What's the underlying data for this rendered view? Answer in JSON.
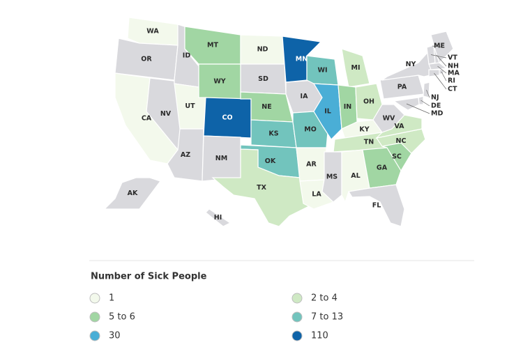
{
  "legend": {
    "title": "Number of Sick People",
    "items": [
      {
        "label": "1",
        "color": "#f3f9ec"
      },
      {
        "label": "2 to 4",
        "color": "#cfe9c4"
      },
      {
        "label": "5 to 6",
        "color": "#a1d6a3"
      },
      {
        "label": "7 to 13",
        "color": "#72c4bd"
      },
      {
        "label": "30",
        "color": "#4aaed6"
      },
      {
        "label": "110",
        "color": "#0e63a8"
      }
    ],
    "no_data_color": "#d9d9dd"
  },
  "states": [
    {
      "label": "WA",
      "group": 0
    },
    {
      "label": "OR",
      "group": null
    },
    {
      "label": "CA",
      "group": 0
    },
    {
      "label": "NV",
      "group": null
    },
    {
      "label": "ID",
      "group": null
    },
    {
      "label": "MT",
      "group": 2
    },
    {
      "label": "WY",
      "group": 2
    },
    {
      "label": "UT",
      "group": 0
    },
    {
      "label": "AZ",
      "group": null
    },
    {
      "label": "CO",
      "group": 5
    },
    {
      "label": "NM",
      "group": null
    },
    {
      "label": "ND",
      "group": 0
    },
    {
      "label": "SD",
      "group": null
    },
    {
      "label": "NE",
      "group": 2
    },
    {
      "label": "KS",
      "group": 3
    },
    {
      "label": "OK",
      "group": 3
    },
    {
      "label": "TX",
      "group": 1
    },
    {
      "label": "MN",
      "group": 5
    },
    {
      "label": "IA",
      "group": null
    },
    {
      "label": "MO",
      "group": 3
    },
    {
      "label": "AR",
      "group": 0
    },
    {
      "label": "LA",
      "group": 0
    },
    {
      "label": "WI",
      "group": 3
    },
    {
      "label": "IL",
      "group": 4
    },
    {
      "label": "MI",
      "group": 1
    },
    {
      "label": "IN",
      "group": 2
    },
    {
      "label": "OH",
      "group": 1
    },
    {
      "label": "KY",
      "group": 0
    },
    {
      "label": "TN",
      "group": 1
    },
    {
      "label": "MS",
      "group": null
    },
    {
      "label": "AL",
      "group": 0
    },
    {
      "label": "GA",
      "group": 2
    },
    {
      "label": "FL",
      "group": null
    },
    {
      "label": "SC",
      "group": 2
    },
    {
      "label": "NC",
      "group": 1
    },
    {
      "label": "VA",
      "group": 1
    },
    {
      "label": "WV",
      "group": null
    },
    {
      "label": "PA",
      "group": null
    },
    {
      "label": "NY",
      "group": null
    },
    {
      "label": "ME",
      "group": null
    },
    {
      "label": "VT",
      "group": null
    },
    {
      "label": "NH",
      "group": null
    },
    {
      "label": "MA",
      "group": null
    },
    {
      "label": "RI",
      "group": null
    },
    {
      "label": "CT",
      "group": null
    },
    {
      "label": "NJ",
      "group": null
    },
    {
      "label": "DE",
      "group": null
    },
    {
      "label": "MD",
      "group": null
    },
    {
      "label": "AK",
      "group": null
    },
    {
      "label": "HI",
      "group": null
    }
  ]
}
